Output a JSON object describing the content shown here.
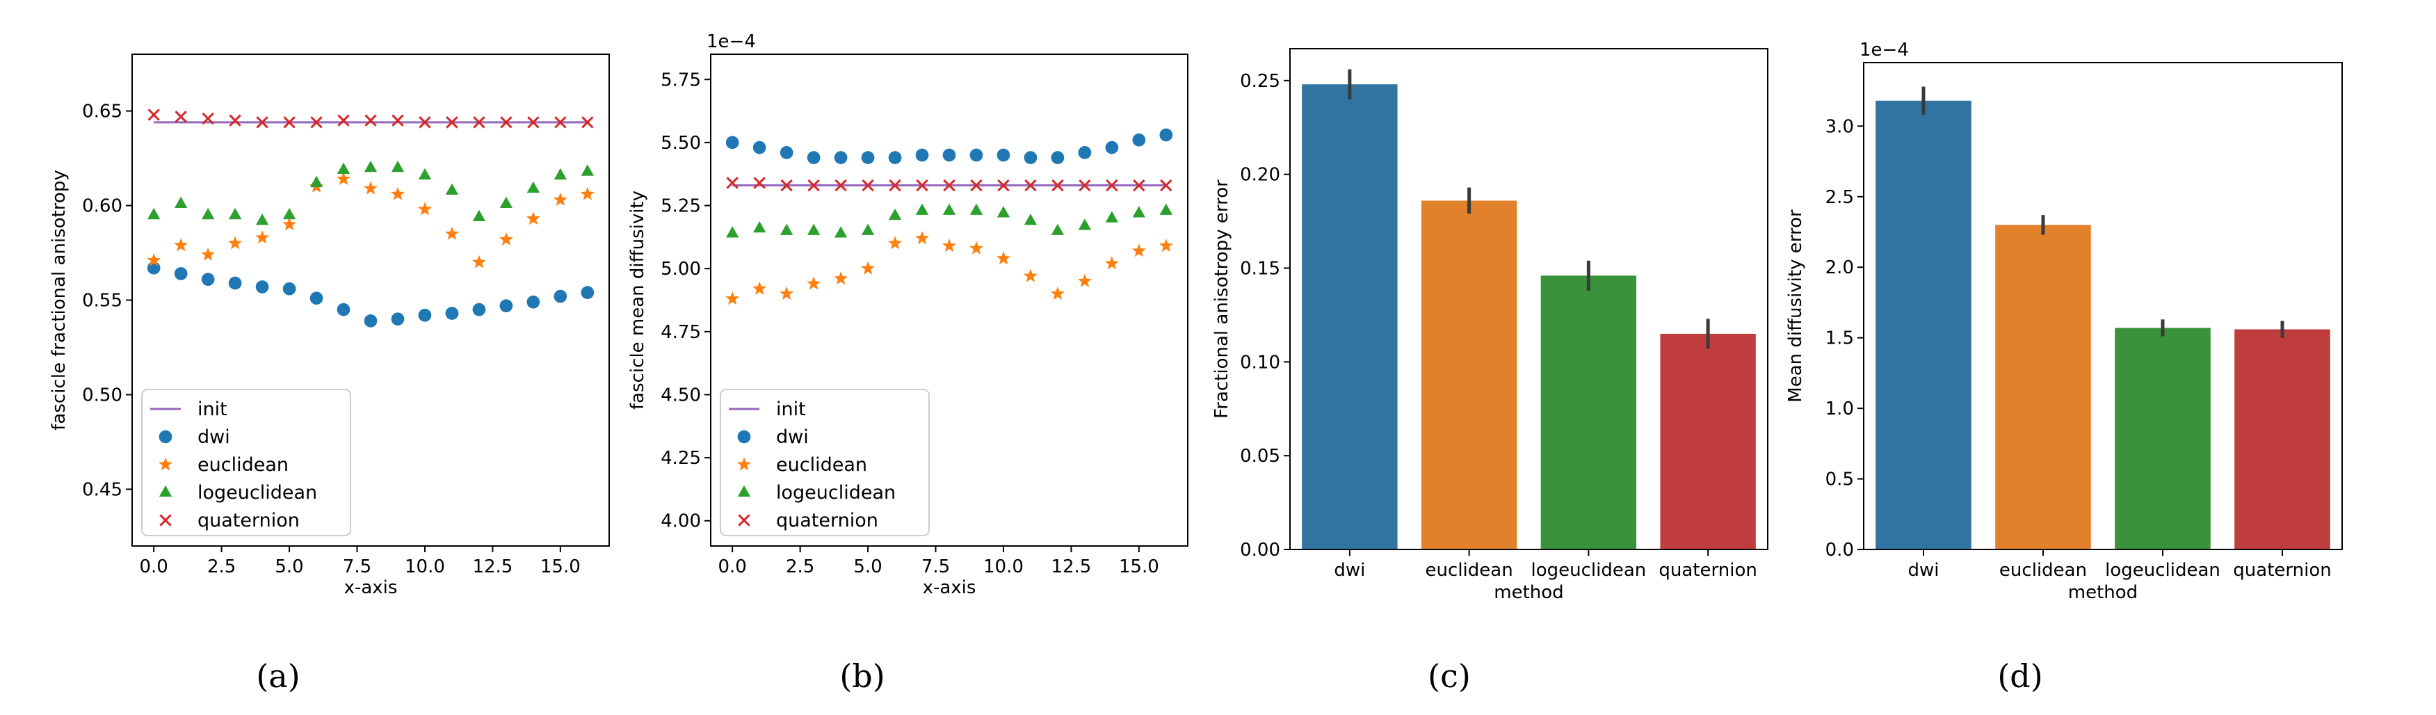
{
  "chart_data": [
    {
      "id": "a",
      "type": "scatter",
      "caption": "(a)",
      "xlabel": "x-axis",
      "ylabel": "fascicle fractional anisotropy",
      "xlim": [
        -0.8,
        16.8
      ],
      "ylim": [
        0.42,
        0.68
      ],
      "xticks": [
        0,
        2.5,
        5,
        7.5,
        10,
        12.5,
        15
      ],
      "xtick_labels": [
        "0.0",
        "2.5",
        "5.0",
        "7.5",
        "10.0",
        "12.5",
        "15.0"
      ],
      "yticks": [
        0.45,
        0.5,
        0.55,
        0.6,
        0.65
      ],
      "ytick_labels": [
        "0.45",
        "0.50",
        "0.55",
        "0.60",
        "0.65"
      ],
      "legend_position": "lower-left",
      "x": [
        0,
        1,
        2,
        3,
        4,
        5,
        6,
        7,
        8,
        9,
        10,
        11,
        12,
        13,
        14,
        15,
        16
      ],
      "series": [
        {
          "name": "init",
          "marker": "line",
          "color": "#9467bd",
          "values": [
            0.644,
            0.644,
            0.644,
            0.644,
            0.644,
            0.644,
            0.644,
            0.644,
            0.644,
            0.644,
            0.644,
            0.644,
            0.644,
            0.644,
            0.644,
            0.644,
            0.644
          ]
        },
        {
          "name": "dwi",
          "marker": "circle",
          "color": "#1f77b4",
          "values": [
            0.567,
            0.564,
            0.561,
            0.559,
            0.557,
            0.556,
            0.551,
            0.545,
            0.539,
            0.54,
            0.542,
            0.543,
            0.545,
            0.547,
            0.549,
            0.552,
            0.554
          ]
        },
        {
          "name": "euclidean",
          "marker": "star",
          "color": "#ff7f0e",
          "values": [
            0.571,
            0.579,
            0.574,
            0.58,
            0.583,
            0.59,
            0.61,
            0.614,
            0.609,
            0.606,
            0.598,
            0.585,
            0.57,
            0.582,
            0.593,
            0.603,
            0.606
          ]
        },
        {
          "name": "logeuclidean",
          "marker": "triangle",
          "color": "#2ca02c",
          "values": [
            0.595,
            0.601,
            0.595,
            0.595,
            0.592,
            0.595,
            0.612,
            0.619,
            0.62,
            0.62,
            0.616,
            0.608,
            0.594,
            0.601,
            0.609,
            0.616,
            0.618
          ]
        },
        {
          "name": "quaternion",
          "marker": "x",
          "color": "#d62728",
          "values": [
            0.648,
            0.647,
            0.646,
            0.645,
            0.644,
            0.644,
            0.644,
            0.645,
            0.645,
            0.645,
            0.644,
            0.644,
            0.644,
            0.644,
            0.644,
            0.644,
            0.644
          ]
        }
      ]
    },
    {
      "id": "b",
      "type": "scatter",
      "caption": "(b)",
      "xlabel": "x-axis",
      "ylabel": "fascicle mean diffusivity",
      "offset_text": "1e−4",
      "xlim": [
        -0.8,
        16.8
      ],
      "ylim": [
        3.9,
        5.85
      ],
      "xticks": [
        0,
        2.5,
        5,
        7.5,
        10,
        12.5,
        15
      ],
      "xtick_labels": [
        "0.0",
        "2.5",
        "5.0",
        "7.5",
        "10.0",
        "12.5",
        "15.0"
      ],
      "yticks": [
        4.0,
        4.25,
        4.5,
        4.75,
        5.0,
        5.25,
        5.5,
        5.75
      ],
      "ytick_labels": [
        "4.00",
        "4.25",
        "4.50",
        "4.75",
        "5.00",
        "5.25",
        "5.50",
        "5.75"
      ],
      "legend_position": "lower-left",
      "x": [
        0,
        1,
        2,
        3,
        4,
        5,
        6,
        7,
        8,
        9,
        10,
        11,
        12,
        13,
        14,
        15,
        16
      ],
      "series": [
        {
          "name": "init",
          "marker": "line",
          "color": "#9467bd",
          "values": [
            5.33,
            5.33,
            5.33,
            5.33,
            5.33,
            5.33,
            5.33,
            5.33,
            5.33,
            5.33,
            5.33,
            5.33,
            5.33,
            5.33,
            5.33,
            5.33,
            5.33
          ]
        },
        {
          "name": "dwi",
          "marker": "circle",
          "color": "#1f77b4",
          "values": [
            5.5,
            5.48,
            5.46,
            5.44,
            5.44,
            5.44,
            5.44,
            5.45,
            5.45,
            5.45,
            5.45,
            5.44,
            5.44,
            5.46,
            5.48,
            5.51,
            5.53
          ]
        },
        {
          "name": "euclidean",
          "marker": "star",
          "color": "#ff7f0e",
          "values": [
            4.88,
            4.92,
            4.9,
            4.94,
            4.96,
            5.0,
            5.1,
            5.12,
            5.09,
            5.08,
            5.04,
            4.97,
            4.9,
            4.95,
            5.02,
            5.07,
            5.09
          ]
        },
        {
          "name": "logeuclidean",
          "marker": "triangle",
          "color": "#2ca02c",
          "values": [
            5.14,
            5.16,
            5.15,
            5.15,
            5.14,
            5.15,
            5.21,
            5.23,
            5.23,
            5.23,
            5.22,
            5.19,
            5.15,
            5.17,
            5.2,
            5.22,
            5.23
          ]
        },
        {
          "name": "quaternion",
          "marker": "x",
          "color": "#d62728",
          "values": [
            5.34,
            5.34,
            5.33,
            5.33,
            5.33,
            5.33,
            5.33,
            5.33,
            5.33,
            5.33,
            5.33,
            5.33,
            5.33,
            5.33,
            5.33,
            5.33,
            5.33
          ]
        }
      ]
    },
    {
      "id": "c",
      "type": "bar",
      "caption": "(c)",
      "xlabel": "method",
      "ylabel": "Fractional anisotropy error",
      "ylim": [
        0,
        0.267
      ],
      "yticks": [
        0,
        0.05,
        0.1,
        0.15,
        0.2,
        0.25
      ],
      "ytick_labels": [
        "0.00",
        "0.05",
        "0.10",
        "0.15",
        "0.20",
        "0.25"
      ],
      "categories": [
        "dwi",
        "euclidean",
        "logeuclidean",
        "quaternion"
      ],
      "values": [
        0.248,
        0.186,
        0.146,
        0.115
      ],
      "errors": [
        0.008,
        0.007,
        0.008,
        0.008
      ],
      "colors": [
        "#3274a1",
        "#e1812c",
        "#3a923a",
        "#c03d3e"
      ]
    },
    {
      "id": "d",
      "type": "bar",
      "caption": "(d)",
      "xlabel": "method",
      "ylabel": "Mean diffusivity error",
      "offset_text": "1e−4",
      "ylim": [
        0,
        3.45
      ],
      "yticks": [
        0,
        0.5,
        1.0,
        1.5,
        2.0,
        2.5,
        3.0
      ],
      "ytick_labels": [
        "0.0",
        "0.5",
        "1.0",
        "1.5",
        "2.0",
        "2.5",
        "3.0"
      ],
      "categories": [
        "dwi",
        "euclidean",
        "logeuclidean",
        "quaternion"
      ],
      "values": [
        3.18,
        2.3,
        1.57,
        1.56
      ],
      "errors": [
        0.1,
        0.07,
        0.06,
        0.06
      ],
      "colors": [
        "#3274a1",
        "#e1812c",
        "#3a923a",
        "#c03d3e"
      ]
    }
  ]
}
